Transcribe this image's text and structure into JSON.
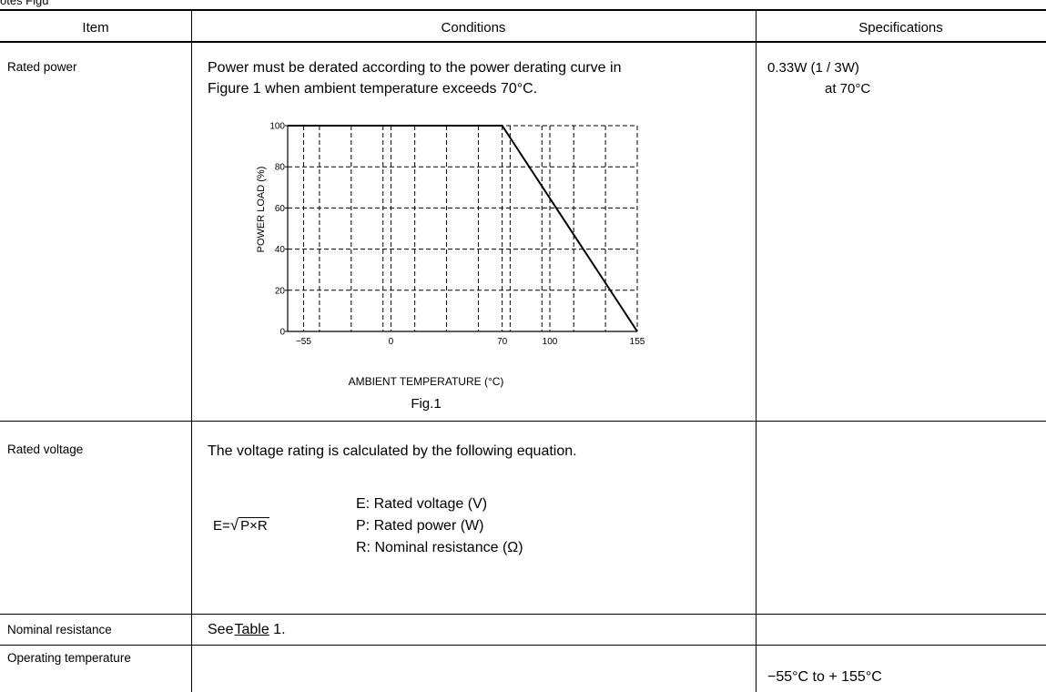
{
  "top_cut_text": "otes Figu",
  "header": {
    "item": "Item",
    "conditions": "Conditions",
    "specifications": "Specifications"
  },
  "rows": [
    {
      "item": "Rated power",
      "conditions_line1": "Power must be derated according to the power derating curve in",
      "conditions_line2": "Figure 1 when ambient temperature exceeds 70°C.",
      "spec_line1": "0.33W (1 / 3W)",
      "spec_line2": "at 70°C"
    },
    {
      "item": "Rated voltage",
      "conditions_line1": "The voltage rating is calculated by the following equation.",
      "formula_lhs": "E=",
      "formula_rad": "P×R",
      "legend": [
        "E: Rated voltage (V)",
        "P: Rated power (W)",
        "R: Nominal resistance (Ω)"
      ]
    },
    {
      "item": "Nominal resistance",
      "conditions_prefix": "See",
      "conditions_link": "Table",
      "conditions_suffix": "1."
    },
    {
      "item": "Operating temperature",
      "spec": "−55°C to + 155°C"
    }
  ],
  "chart_data": {
    "type": "line",
    "caption": "Fig.1",
    "xlabel": "AMBIENT TEMPERATURE (°C)",
    "ylabel": "POWER LOAD (%)",
    "x_ticks": [
      -55,
      0,
      70,
      100,
      155
    ],
    "y_ticks": [
      0,
      20,
      40,
      60,
      80,
      100
    ],
    "xlim": [
      -65,
      155
    ],
    "ylim": [
      0,
      100
    ],
    "grid": true,
    "series": [
      {
        "x": [
          -65,
          70,
          155
        ],
        "y": [
          100,
          100,
          0
        ]
      }
    ]
  }
}
